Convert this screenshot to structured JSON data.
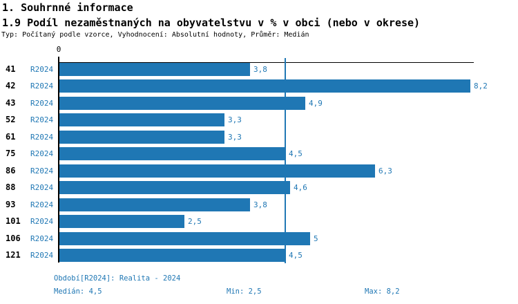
{
  "header": {
    "section_title": "1. Souhrnné informace",
    "chart_title": "1.9 Podíl nezaměstnaných na obyvatelstvu v % v obci (nebo v okrese)",
    "subtitle": "Typ: Počítaný podle vzorce, Vyhodnocení: Absolutní hodnoty, Průměr: Medián"
  },
  "chart_data": {
    "type": "bar",
    "orientation": "horizontal",
    "categories": [
      "41",
      "42",
      "43",
      "52",
      "61",
      "75",
      "86",
      "88",
      "93",
      "101",
      "106",
      "121"
    ],
    "series": [
      {
        "name": "R2024",
        "values": [
          3.8,
          8.2,
          4.9,
          3.3,
          3.3,
          4.5,
          6.3,
          4.6,
          3.8,
          2.5,
          5,
          4.5
        ],
        "value_labels": [
          "3,8",
          "8,2",
          "4,9",
          "3,3",
          "3,3",
          "4,5",
          "6,3",
          "4,6",
          "3,8",
          "2,5",
          "5",
          "4,5"
        ]
      }
    ],
    "xlim": [
      0,
      8.27
    ],
    "x_tick_labels": [
      "0"
    ],
    "median_line_value": 4.5,
    "bar_color": "#1F77B4",
    "median_line_color": "#1F77B4",
    "grid": false,
    "legend": false
  },
  "footer": {
    "period_label": "Období[R2024]: Realita - 2024",
    "median_label": "Medián: 4,5",
    "min_label": "Min: 2,5",
    "max_label": "Max: 8,2"
  }
}
